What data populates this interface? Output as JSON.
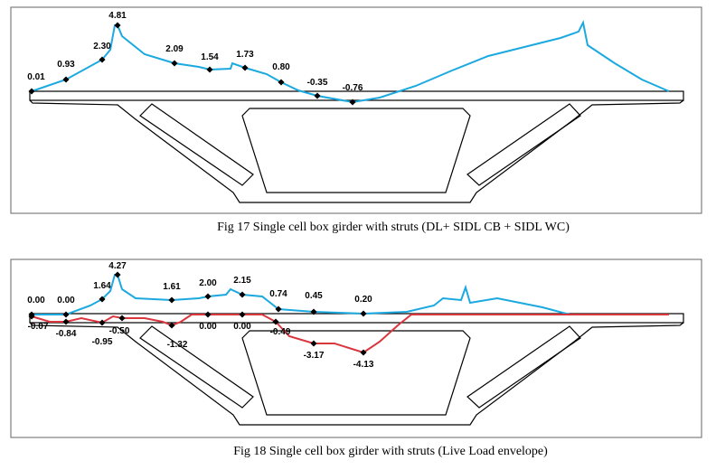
{
  "figures": [
    {
      "caption": "Fig 17 Single cell box girder with struts (DL+ SIDL CB + SIDL WC)",
      "labels": [
        "0.01",
        "0.93",
        "2.30",
        "4.81",
        "2.09",
        "1.54",
        "1.73",
        "0.80",
        "-0.35",
        "-0.76"
      ]
    },
    {
      "caption": "Fig 18 Single cell box girder with struts (Live Load envelope)",
      "labels": [
        "0.00",
        "0.00",
        "1.64",
        "4.27",
        "1.61",
        "2.00",
        "2.15",
        "0.74",
        "0.45",
        "0.20"
      ],
      "labels_negative": [
        "-0.07",
        "-0.84",
        "-0.95",
        "-0.50",
        "-1.32",
        "0.00",
        "0.00",
        "-0.49",
        "-3.17",
        "-4.13"
      ]
    }
  ]
}
